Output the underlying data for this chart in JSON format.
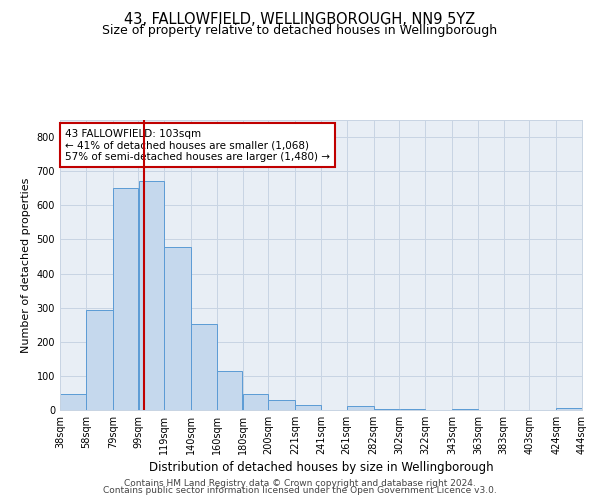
{
  "title": "43, FALLOWFIELD, WELLINGBOROUGH, NN9 5YZ",
  "subtitle": "Size of property relative to detached houses in Wellingborough",
  "xlabel": "Distribution of detached houses by size in Wellingborough",
  "ylabel": "Number of detached properties",
  "footer_lines": [
    "Contains HM Land Registry data © Crown copyright and database right 2024.",
    "Contains public sector information licensed under the Open Government Licence v3.0."
  ],
  "bar_left_edges": [
    38,
    58,
    79,
    99,
    119,
    140,
    160,
    180,
    200,
    221,
    241,
    261,
    282,
    302,
    322,
    343,
    363,
    383,
    403,
    424
  ],
  "bar_widths": [
    20,
    21,
    20,
    20,
    21,
    20,
    20,
    20,
    21,
    20,
    20,
    21,
    20,
    20,
    21,
    20,
    20,
    20,
    21,
    20
  ],
  "bar_heights": [
    47,
    293,
    651,
    672,
    477,
    252,
    113,
    48,
    28,
    15,
    0,
    13,
    4,
    3,
    0,
    4,
    0,
    0,
    0,
    7
  ],
  "bar_color": "#c5d8ed",
  "bar_edgecolor": "#5b9bd5",
  "vline_x": 103,
  "vline_color": "#c00000",
  "annotation": {
    "text_line1": "43 FALLOWFIELD: 103sqm",
    "text_line2": "← 41% of detached houses are smaller (1,068)",
    "text_line3": "57% of semi-detached houses are larger (1,480) →",
    "box_color": "white",
    "edge_color": "#c00000",
    "fontsize": 7.5
  },
  "tick_labels": [
    "38sqm",
    "58sqm",
    "79sqm",
    "99sqm",
    "119sqm",
    "140sqm",
    "160sqm",
    "180sqm",
    "200sqm",
    "221sqm",
    "241sqm",
    "261sqm",
    "282sqm",
    "302sqm",
    "322sqm",
    "343sqm",
    "363sqm",
    "383sqm",
    "403sqm",
    "424sqm",
    "444sqm"
  ],
  "ylim": [
    0,
    850
  ],
  "yticks": [
    0,
    100,
    200,
    300,
    400,
    500,
    600,
    700,
    800
  ],
  "grid_color": "#c8d4e3",
  "background_color": "#e8eef5",
  "title_fontsize": 10.5,
  "subtitle_fontsize": 9,
  "xlabel_fontsize": 8.5,
  "ylabel_fontsize": 8,
  "tick_fontsize": 7,
  "footer_fontsize": 6.5
}
